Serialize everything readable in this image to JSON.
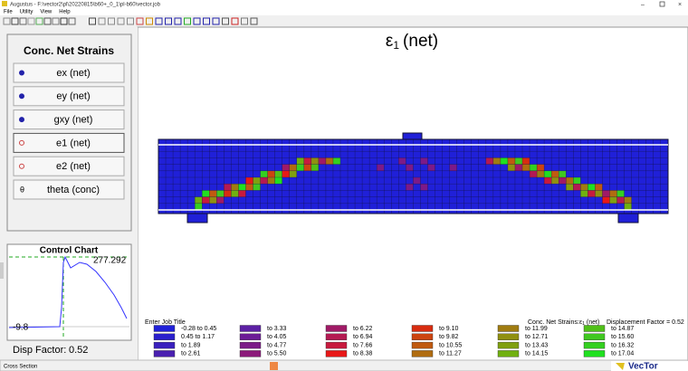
{
  "window": {
    "title": "Augustus - F:\\vector2\\pl\\20220815\\b60+_0_1\\pl-b60\\vector.job"
  },
  "menu": [
    "File",
    "Utility",
    "View",
    "Help"
  ],
  "left_panel": {
    "title": "Conc. Net Strains",
    "buttons": [
      {
        "label": "ex (net)"
      },
      {
        "label": "ey (net)"
      },
      {
        "label": "gxy (net)"
      },
      {
        "label": "e1 (net)"
      },
      {
        "label": "e2 (net)"
      },
      {
        "label": "theta (conc)",
        "icon": "θ"
      }
    ]
  },
  "control_chart": {
    "title": "Control Chart",
    "max_label": "277.292",
    "min_label": "-9.8",
    "disp_factor_label": "Disp Factor:",
    "disp_factor": "0.52"
  },
  "main": {
    "title": {
      "symbol": "ε",
      "subscript": "1",
      "suffix": "(net)"
    }
  },
  "footer": {
    "job_title": "Enter Job Title",
    "quantity_label": "Conc. Net Strains:",
    "quantity": {
      "symbol": "ε",
      "subscript": "1",
      "suffix": "(net)"
    },
    "displacement": "Displacement Factor =  0.52"
  },
  "legend": [
    {
      "label": "-0.28 to 0.45",
      "color": "#2020d8"
    },
    {
      "label": "0.45 to 1.17",
      "color": "#2a20cc"
    },
    {
      "label": "to   1.89",
      "color": "#3a20be"
    },
    {
      "label": "to   2.61",
      "color": "#4a20b0"
    },
    {
      "label": "to   3.33",
      "color": "#5c20a4"
    },
    {
      "label": "to   4.05",
      "color": "#6c1c96"
    },
    {
      "label": "to   4.77",
      "color": "#7c1a88"
    },
    {
      "label": "to   5.50",
      "color": "#8c1a7a"
    },
    {
      "label": "to   6.22",
      "color": "#a01a66"
    },
    {
      "label": "to   6.94",
      "color": "#b41a52"
    },
    {
      "label": "to   7.66",
      "color": "#c81a3e"
    },
    {
      "label": "to   8.38",
      "color": "#e81818"
    },
    {
      "label": "to   9.10",
      "color": "#d82c10"
    },
    {
      "label": "to   9.82",
      "color": "#cc4410"
    },
    {
      "label": "to  10.55",
      "color": "#c05a10"
    },
    {
      "label": "to  11.27",
      "color": "#b06c10"
    },
    {
      "label": "to  11.99",
      "color": "#a07c10"
    },
    {
      "label": "to  12.71",
      "color": "#909010"
    },
    {
      "label": "to  13.43",
      "color": "#80a010"
    },
    {
      "label": "to  14.15",
      "color": "#70b010"
    },
    {
      "label": "to  14.87",
      "color": "#50c018"
    },
    {
      "label": "to  15.60",
      "color": "#40c820"
    },
    {
      "label": "to  16.32",
      "color": "#34d020"
    },
    {
      "label": "to  17.04",
      "color": "#20e020"
    }
  ],
  "status_bar": {
    "left": "Cross Section",
    "brand": "VecTor"
  }
}
